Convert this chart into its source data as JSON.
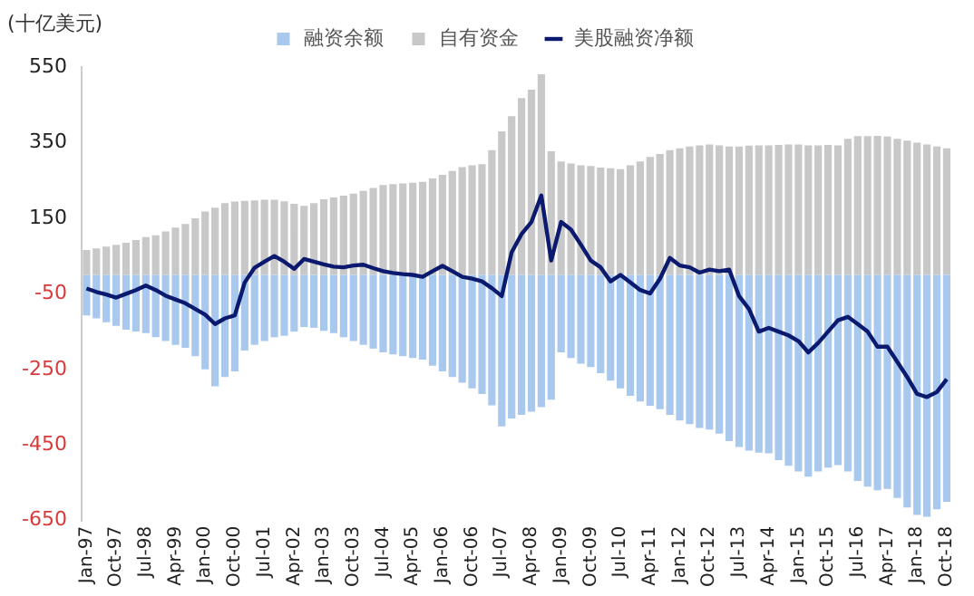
{
  "chart_data": {
    "type": "bar",
    "stacked": true,
    "ylabel": "(十亿美元)",
    "legend": "top",
    "grid": false,
    "categories": [
      "Jan-97",
      null,
      null,
      "Oct-97",
      null,
      null,
      "Jul-98",
      null,
      null,
      "Apr-99",
      null,
      null,
      "Jan-00",
      null,
      null,
      "Oct-00",
      null,
      null,
      "Jul-01",
      null,
      null,
      "Apr-02",
      null,
      null,
      "Jan-03",
      null,
      null,
      "Oct-03",
      null,
      null,
      "Jul-04",
      null,
      null,
      "Apr-05",
      null,
      null,
      "Jan-06",
      null,
      null,
      "Oct-06",
      null,
      null,
      "Jul-07",
      null,
      null,
      "Apr-08",
      null,
      null,
      "Jan-09",
      null,
      null,
      "Oct-09",
      null,
      null,
      "Jul-10",
      null,
      null,
      "Apr-11",
      null,
      null,
      "Jan-12",
      null,
      null,
      "Oct-12",
      null,
      null,
      "Jul-13",
      null,
      null,
      "Apr-14",
      null,
      null,
      "Jan-15",
      null,
      null,
      "Oct-15",
      null,
      null,
      "Jul-16",
      null,
      null,
      "Apr-17",
      null,
      null,
      "Jan-18",
      null,
      null,
      "Oct-18"
    ],
    "ylim": [
      -650,
      550
    ],
    "yticks": [
      -650,
      -450,
      -250,
      -50,
      150,
      350,
      550
    ],
    "series": [
      {
        "name": "融资余额",
        "color": "#a9c8ee",
        "values": [
          -107,
          -115,
          -125,
          -135,
          -145,
          -150,
          -154,
          -165,
          -175,
          -185,
          -193,
          -215,
          -250,
          -295,
          -270,
          -255,
          -200,
          -185,
          -175,
          -165,
          -161,
          -150,
          -138,
          -140,
          -148,
          -154,
          -165,
          -175,
          -185,
          -195,
          -205,
          -210,
          -215,
          -220,
          -224,
          -240,
          -255,
          -270,
          -285,
          -300,
          -315,
          -345,
          -401,
          -380,
          -370,
          -362,
          -350,
          -330,
          -205,
          -220,
          -235,
          -244,
          -260,
          -280,
          -300,
          -320,
          -335,
          -346,
          -355,
          -370,
          -385,
          -395,
          -405,
          -409,
          -420,
          -440,
          -455,
          -465,
          -470,
          -472,
          -490,
          -505,
          -520,
          -534,
          -520,
          -510,
          -503,
          -520,
          -545,
          -560,
          -570,
          -566,
          -590,
          -615,
          -635,
          -640,
          -620,
          -600
        ]
      },
      {
        "name": "自有资金",
        "color": "#c8c8c8",
        "values": [
          66,
          70,
          75,
          80,
          85,
          92,
          100,
          105,
          115,
          125,
          135,
          150,
          168,
          178,
          190,
          194,
          196,
          197,
          199,
          199,
          195,
          188,
          183,
          190,
          200,
          205,
          210,
          215,
          222,
          230,
          238,
          240,
          242,
          244,
          246,
          255,
          265,
          275,
          285,
          290,
          293,
          330,
          380,
          420,
          468,
          490,
          531,
          327,
          300,
          295,
          290,
          288,
          284,
          282,
          280,
          290,
          300,
          312,
          320,
          330,
          335,
          340,
          343,
          345,
          343,
          340,
          340,
          342,
          343,
          343,
          344,
          345,
          345,
          343,
          343,
          344,
          343,
          360,
          367,
          367,
          368,
          366,
          360,
          355,
          350,
          345,
          340,
          335
        ]
      },
      {
        "name": "美股融资净额",
        "type": "line",
        "color": "#0b1a6e",
        "values": [
          -36,
          -45,
          -52,
          -60,
          -50,
          -40,
          -28,
          -40,
          -55,
          -65,
          -75,
          -90,
          -105,
          -130,
          -115,
          -107,
          -20,
          19,
          35,
          50,
          35,
          16,
          42,
          35,
          28,
          22,
          20,
          25,
          27,
          18,
          10,
          5,
          2,
          0,
          -5,
          10,
          24,
          10,
          -5,
          -10,
          -17,
          -35,
          -56,
          60,
          108,
          140,
          210,
          38,
          140,
          120,
          80,
          38,
          20,
          -17,
          0,
          -20,
          -40,
          -49,
          -10,
          45,
          25,
          20,
          6,
          14,
          10,
          14,
          -56,
          -90,
          -150,
          -140,
          -150,
          -160,
          -175,
          -205,
          -180,
          -150,
          -120,
          -111,
          -130,
          -150,
          -190,
          -190,
          -230,
          -270,
          -315,
          -323,
          -310,
          -276
        ]
      }
    ]
  }
}
